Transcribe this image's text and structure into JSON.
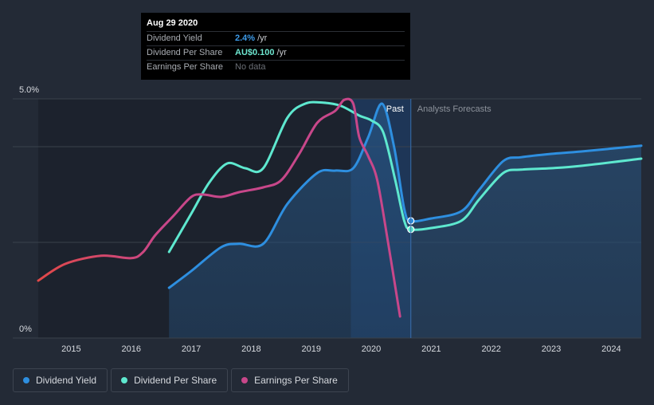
{
  "tooltip": {
    "date": "Aug 29 2020",
    "rows": [
      {
        "label": "Dividend Yield",
        "value": "2.4%",
        "unit": "/yr"
      },
      {
        "label": "Dividend Per Share",
        "value": "AU$0.100",
        "unit": "/yr"
      },
      {
        "label": "Earnings Per Share",
        "value": "No data"
      }
    ]
  },
  "legend": [
    {
      "label": "Dividend Yield",
      "color": "#2e8fe0"
    },
    {
      "label": "Dividend Per Share",
      "color": "#5ee8cf"
    },
    {
      "label": "Earnings Per Share",
      "color": "#c8478a"
    }
  ],
  "chart_data": {
    "type": "line",
    "title": "",
    "xlabel": "",
    "ylabel": "",
    "xlim": [
      2014.45,
      2024.5
    ],
    "ylim": [
      0,
      5.0
    ],
    "x_ticks": [
      2015,
      2016,
      2017,
      2018,
      2019,
      2020,
      2021,
      2022,
      2023,
      2024
    ],
    "y_tick_labels": [
      {
        "value": 5.0,
        "label": "5.0%"
      },
      {
        "value": 0,
        "label": "0%"
      }
    ],
    "gridlines_at": [
      5.0,
      4.0,
      2.0
    ],
    "past_label": "Past",
    "forecast_label": "Analysts Forecasts",
    "past_end_x": 2020.66,
    "highlight_start_x": 2019.66,
    "marker_x": 2020.66,
    "series": [
      {
        "name": "Dividend Yield",
        "color": "#2e8fe0",
        "filled": true,
        "points": [
          [
            2016.63,
            1.05
          ],
          [
            2017.0,
            1.4
          ],
          [
            2017.5,
            1.9
          ],
          [
            2017.8,
            1.97
          ],
          [
            2018.2,
            1.97
          ],
          [
            2018.6,
            2.8
          ],
          [
            2019.1,
            3.45
          ],
          [
            2019.4,
            3.5
          ],
          [
            2019.7,
            3.55
          ],
          [
            2019.95,
            4.2
          ],
          [
            2020.18,
            4.9
          ],
          [
            2020.38,
            4.0
          ],
          [
            2020.55,
            2.7
          ],
          [
            2020.66,
            2.45
          ],
          [
            2021.0,
            2.5
          ],
          [
            2021.5,
            2.65
          ],
          [
            2021.8,
            3.1
          ],
          [
            2022.2,
            3.7
          ],
          [
            2022.5,
            3.78
          ],
          [
            2023.0,
            3.85
          ],
          [
            2023.5,
            3.9
          ],
          [
            2024.5,
            4.02
          ]
        ]
      },
      {
        "name": "Dividend Per Share",
        "color": "#5ee8cf",
        "filled": false,
        "points": [
          [
            2016.63,
            1.8
          ],
          [
            2017.0,
            2.6
          ],
          [
            2017.3,
            3.25
          ],
          [
            2017.6,
            3.65
          ],
          [
            2017.9,
            3.55
          ],
          [
            2018.2,
            3.55
          ],
          [
            2018.6,
            4.6
          ],
          [
            2018.9,
            4.9
          ],
          [
            2019.2,
            4.92
          ],
          [
            2019.5,
            4.85
          ],
          [
            2019.8,
            4.65
          ],
          [
            2020.0,
            4.55
          ],
          [
            2020.2,
            4.3
          ],
          [
            2020.4,
            3.3
          ],
          [
            2020.55,
            2.45
          ],
          [
            2020.66,
            2.27
          ],
          [
            2021.0,
            2.3
          ],
          [
            2021.5,
            2.45
          ],
          [
            2021.8,
            2.9
          ],
          [
            2022.2,
            3.45
          ],
          [
            2022.5,
            3.52
          ],
          [
            2023.0,
            3.55
          ],
          [
            2023.5,
            3.6
          ],
          [
            2024.5,
            3.75
          ]
        ]
      },
      {
        "name": "Earnings Per Share",
        "color": "#c8478a",
        "filled": false,
        "startColor": "#e04848",
        "points": [
          [
            2014.45,
            1.2
          ],
          [
            2014.9,
            1.55
          ],
          [
            2015.5,
            1.72
          ],
          [
            2016.0,
            1.67
          ],
          [
            2016.2,
            1.8
          ],
          [
            2016.4,
            2.15
          ],
          [
            2016.7,
            2.55
          ],
          [
            2017.0,
            2.95
          ],
          [
            2017.2,
            3.0
          ],
          [
            2017.5,
            2.95
          ],
          [
            2017.8,
            3.05
          ],
          [
            2018.2,
            3.15
          ],
          [
            2018.5,
            3.3
          ],
          [
            2018.8,
            3.85
          ],
          [
            2019.1,
            4.5
          ],
          [
            2019.4,
            4.75
          ],
          [
            2019.55,
            4.98
          ],
          [
            2019.7,
            4.9
          ],
          [
            2019.8,
            4.2
          ],
          [
            2019.95,
            3.8
          ],
          [
            2020.1,
            3.3
          ],
          [
            2020.28,
            2.0
          ],
          [
            2020.48,
            0.45
          ]
        ]
      }
    ],
    "marker_values": [
      {
        "series": "Dividend Yield",
        "x": 2020.66,
        "y": 2.45
      },
      {
        "series": "Dividend Per Share",
        "x": 2020.66,
        "y": 2.27
      }
    ]
  }
}
